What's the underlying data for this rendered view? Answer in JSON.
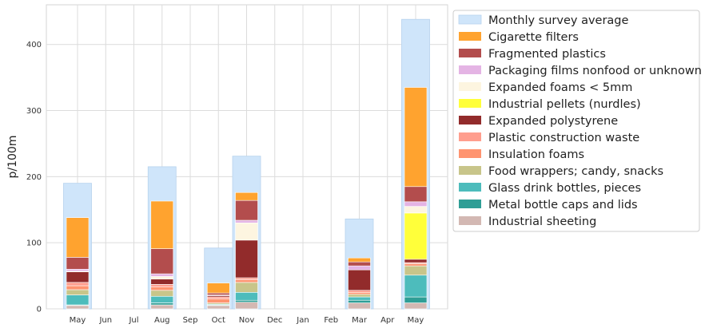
{
  "chart_data": {
    "type": "bar",
    "title": "",
    "xlabel": "",
    "ylabel": "p/100m",
    "ylim": [
      0,
      460
    ],
    "yticks": [
      0,
      100,
      200,
      300,
      400
    ],
    "grid": true,
    "legend_position": "outside-top-right",
    "categories": [
      "May",
      "Jun",
      "Jul",
      "Aug",
      "Sep",
      "Oct",
      "Nov",
      "Dec",
      "Jan",
      "Feb",
      "Mar",
      "Apr",
      "May"
    ],
    "background_series": {
      "name": "Monthly survey average",
      "color": "#cfe5fa",
      "values": [
        190,
        0,
        0,
        215,
        0,
        92,
        231,
        0,
        0,
        0,
        136,
        0,
        438
      ]
    },
    "series": [
      {
        "name": "Cigarette filters",
        "color": "#ffa32f",
        "values": [
          60,
          0,
          0,
          72,
          0,
          15,
          12,
          0,
          0,
          0,
          6,
          0,
          150
        ]
      },
      {
        "name": "Fragmented plastics",
        "color": "#b34d4d",
        "values": [
          18,
          0,
          0,
          38,
          0,
          3,
          30,
          0,
          0,
          0,
          6,
          0,
          23
        ]
      },
      {
        "name": "Packaging films nonfood or unknown",
        "color": "#e4b4e4",
        "values": [
          3,
          0,
          0,
          4,
          0,
          1,
          4,
          0,
          0,
          0,
          6,
          0,
          7
        ]
      },
      {
        "name": "Expanded foams < 5mm",
        "color": "#fdf5e0",
        "values": [
          1,
          0,
          0,
          4,
          0,
          0,
          26,
          0,
          0,
          0,
          0,
          0,
          10
        ]
      },
      {
        "name": "Industrial pellets (nurdles)",
        "color": "#ffff3a",
        "values": [
          0,
          0,
          0,
          0,
          0,
          0,
          0,
          0,
          0,
          0,
          0,
          0,
          70
        ]
      },
      {
        "name": "Expanded polystyrene",
        "color": "#922b2b",
        "values": [
          16,
          0,
          0,
          8,
          0,
          2,
          57,
          0,
          0,
          0,
          31,
          0,
          5
        ]
      },
      {
        "name": "Plastic construction waste",
        "color": "#ff9e8e",
        "values": [
          5,
          0,
          0,
          4,
          0,
          3,
          3,
          0,
          0,
          0,
          3,
          0,
          2
        ]
      },
      {
        "name": "Insulation foams",
        "color": "#ff9470",
        "values": [
          6,
          0,
          0,
          5,
          0,
          6,
          4,
          0,
          0,
          0,
          3,
          0,
          3
        ]
      },
      {
        "name": "Food wrappers; candy, snacks",
        "color": "#c8c58a",
        "values": [
          8,
          0,
          0,
          9,
          0,
          2,
          15,
          0,
          0,
          0,
          4,
          0,
          14
        ]
      },
      {
        "name": "Glass drink bottles, pieces",
        "color": "#4dbcbc",
        "values": [
          15,
          0,
          0,
          10,
          0,
          1,
          12,
          0,
          0,
          0,
          5,
          0,
          33
        ]
      },
      {
        "name": "Metal bottle caps and lids",
        "color": "#2f9e96",
        "values": [
          1,
          0,
          0,
          3,
          0,
          1,
          3,
          0,
          0,
          0,
          4,
          0,
          9
        ]
      },
      {
        "name": "Industrial sheeting",
        "color": "#d3b8b3",
        "values": [
          5,
          0,
          0,
          6,
          0,
          5,
          10,
          0,
          0,
          0,
          9,
          0,
          9
        ]
      }
    ]
  }
}
